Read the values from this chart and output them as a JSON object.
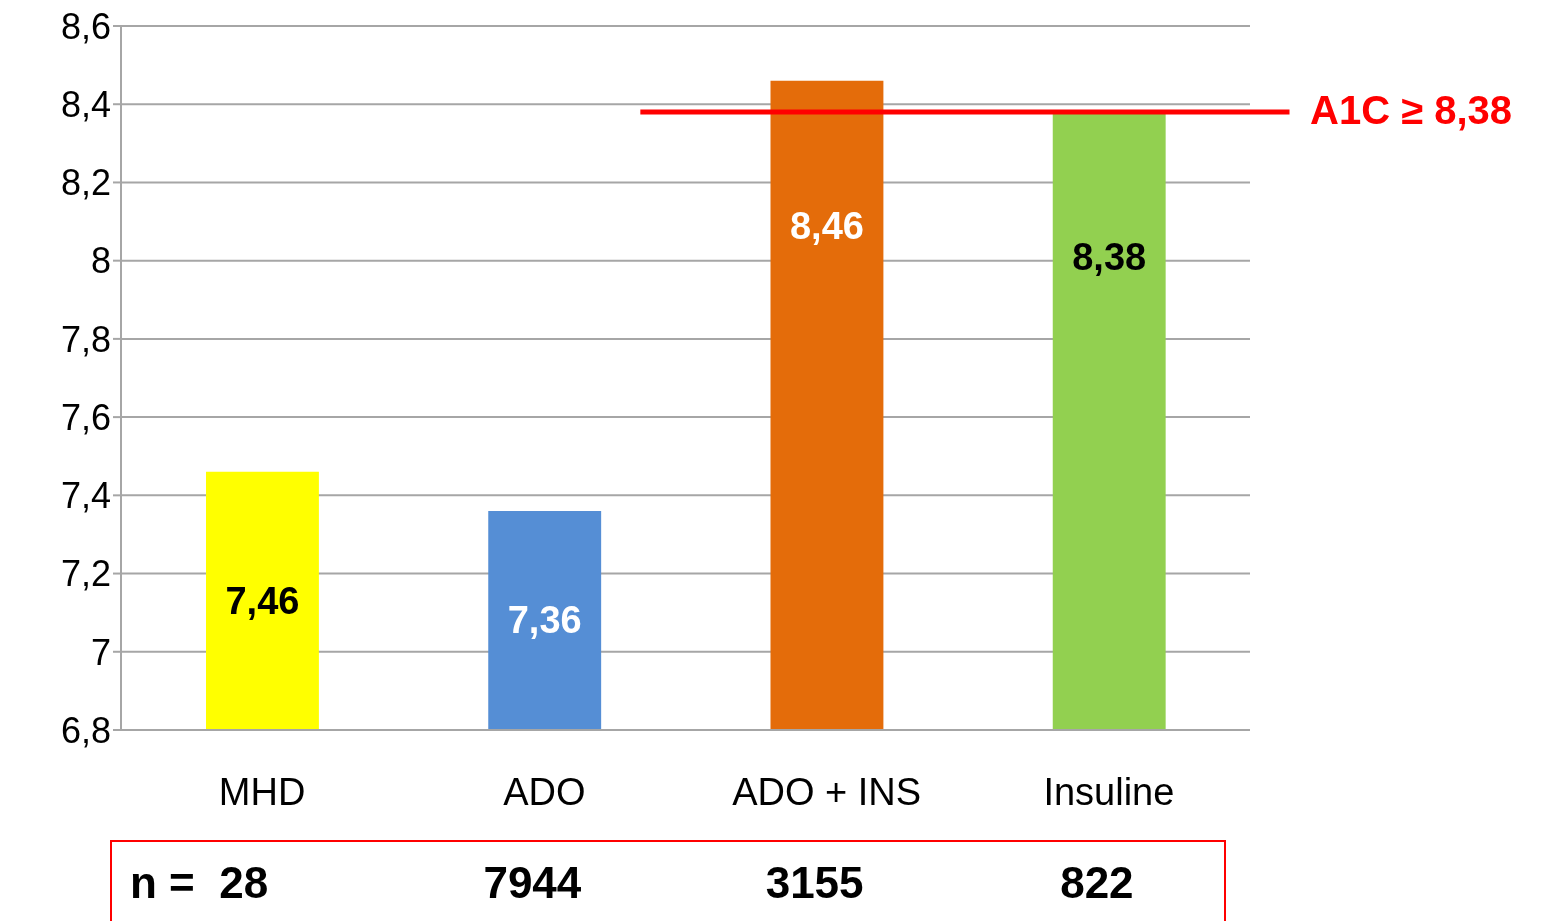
{
  "chart_data": {
    "type": "bar",
    "categories": [
      "MHD",
      "ADO",
      "ADO + INS",
      "Insuline"
    ],
    "values": [
      7.46,
      7.36,
      8.46,
      8.38
    ],
    "colors": [
      "#ffff00",
      "#558ed5",
      "#e46c0a",
      "#92d050"
    ],
    "value_labels": [
      "7,46",
      "7,36",
      "8,46",
      "8,38"
    ],
    "ylim": [
      6.8,
      8.6
    ],
    "yticks": [
      {
        "value": 6.8,
        "label": "6,8"
      },
      7,
      {
        "value": 7.2,
        "label": "7,2"
      },
      {
        "value": 7.4,
        "label": "7,4"
      },
      {
        "value": 7.6,
        "label": "7,6"
      },
      {
        "value": 7.8,
        "label": "7,8"
      },
      8,
      {
        "value": 8.2,
        "label": "8,2"
      },
      {
        "value": 8.4,
        "label": "8,4"
      },
      {
        "value": 8.6,
        "label": "8,6"
      }
    ],
    "grid": "y",
    "ref_lines": [
      {
        "axis": "y",
        "value": 8.38,
        "label": "A1C ≥ 8,38",
        "color": "#ff0000"
      }
    ],
    "annotations": [
      "n =  28",
      "7944",
      "3155",
      "822"
    ]
  }
}
